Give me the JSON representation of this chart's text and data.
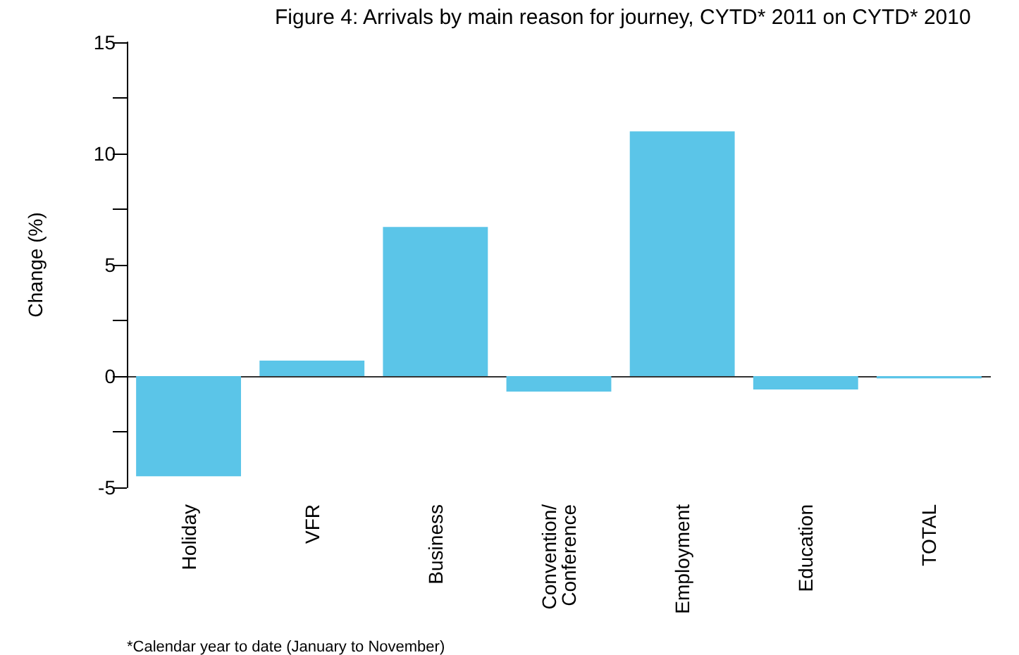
{
  "chart_data": {
    "type": "bar",
    "title": "Figure 4: Arrivals by main reason for journey, CYTD* 2011 on CYTD* 2010",
    "ylabel": "Change (%)",
    "categories": [
      "Holiday",
      "VFR",
      "Business",
      "Convention/\nConference",
      "Employment",
      "Education",
      "TOTAL"
    ],
    "values": [
      -4.5,
      0.7,
      6.7,
      -0.7,
      11.0,
      -0.6,
      -0.1
    ],
    "color": "#5bc5e8",
    "ylim": [
      -5,
      15
    ],
    "yticks": [
      -5,
      {
        "value": -2.5,
        "label": null
      },
      0,
      {
        "value": 2.5,
        "label": null
      },
      5,
      {
        "value": 7.5,
        "label": null
      },
      10,
      {
        "value": 12.5,
        "label": null
      },
      15
    ],
    "grid": false,
    "ref_lines": [
      {
        "axis": "y",
        "value": 0,
        "color": "#333333"
      }
    ],
    "annotations": [
      "*Calendar year to date (January to November)"
    ]
  }
}
